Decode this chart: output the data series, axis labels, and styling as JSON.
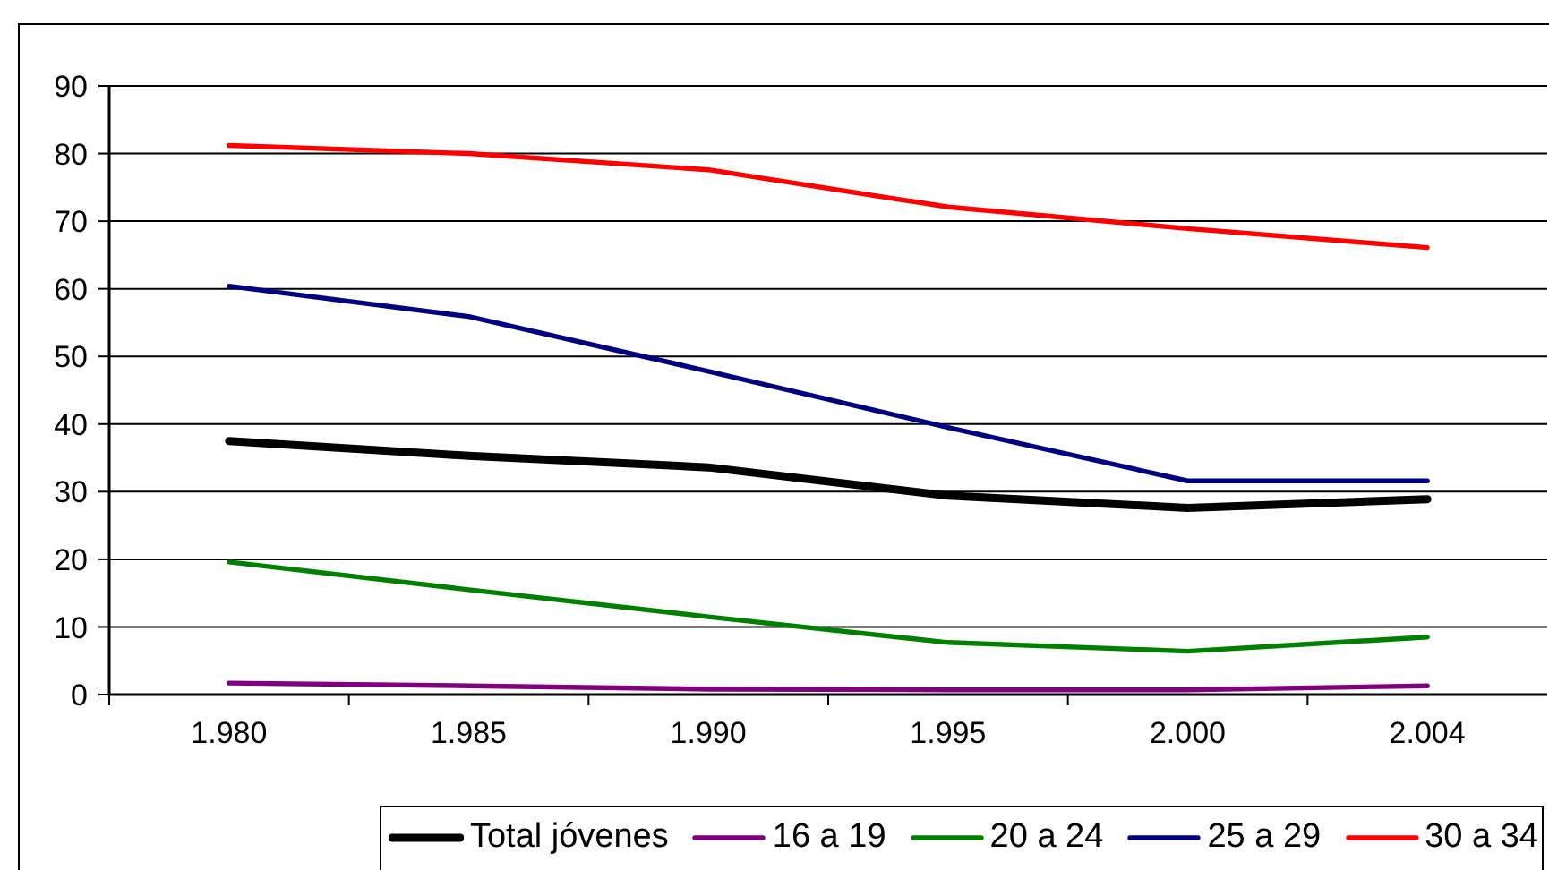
{
  "chart_data": {
    "type": "line",
    "categories": [
      "1.980",
      "1.985",
      "1.990",
      "1.995",
      "2.000",
      "2.004"
    ],
    "series": [
      {
        "name": "Total jóvenes",
        "color": "#000000",
        "values": [
          37.5,
          35.3,
          33.6,
          29.4,
          27.6,
          28.9
        ]
      },
      {
        "name": "16 a 19",
        "color": "#800080",
        "values": [
          1.7,
          1.3,
          0.8,
          0.7,
          0.7,
          1.3
        ]
      },
      {
        "name": "20 a 24",
        "color": "#008000",
        "values": [
          19.6,
          15.5,
          11.5,
          7.7,
          6.4,
          8.5
        ]
      },
      {
        "name": "25 a 29",
        "color": "#000080",
        "values": [
          60.4,
          55.9,
          47.8,
          39.5,
          31.6,
          31.6
        ]
      },
      {
        "name": "30 a 34",
        "color": "#ff0000",
        "values": [
          81.2,
          80.0,
          77.6,
          72.1,
          68.9,
          66.1
        ]
      }
    ],
    "ylim": [
      0,
      90
    ],
    "yticks": [
      0,
      10,
      20,
      30,
      40,
      50,
      60,
      70,
      80,
      90
    ],
    "grid": "y",
    "legend": "bottom right"
  }
}
